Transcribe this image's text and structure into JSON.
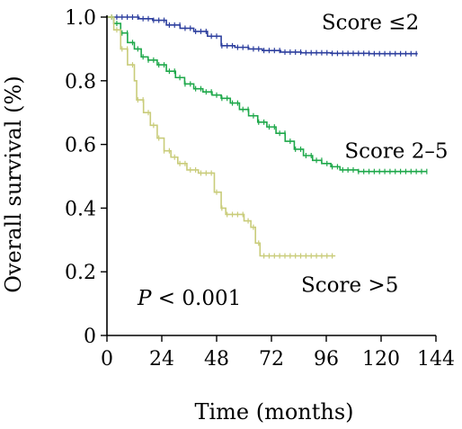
{
  "chart_data": {
    "type": "line",
    "subtype": "kaplan-meier step curves",
    "title": "",
    "xlabel": "Time (months)",
    "ylabel": "Overall survival (%)",
    "xlim": [
      0,
      144
    ],
    "ylim": [
      0,
      1.0
    ],
    "x_ticks": [
      "0",
      "24",
      "48",
      "72",
      "96",
      "120",
      "144"
    ],
    "y_ticks": [
      "0",
      "0.2",
      "0.4",
      "0.6",
      "0.8",
      "1.0"
    ],
    "grid": false,
    "annotations": {
      "p_value_italic": "P",
      "p_value_rest": " < 0.001"
    },
    "series": [
      {
        "name": "Score ≤2",
        "color": "#2d3f9e",
        "points": [
          [
            0,
            1.0
          ],
          [
            10,
            1.0
          ],
          [
            14,
            0.995
          ],
          [
            20,
            0.99
          ],
          [
            26,
            0.975
          ],
          [
            32,
            0.965
          ],
          [
            38,
            0.955
          ],
          [
            44,
            0.94
          ],
          [
            50,
            0.91
          ],
          [
            56,
            0.905
          ],
          [
            62,
            0.9
          ],
          [
            68,
            0.895
          ],
          [
            76,
            0.89
          ],
          [
            85,
            0.888
          ],
          [
            98,
            0.886
          ],
          [
            115,
            0.885
          ],
          [
            134,
            0.885
          ]
        ],
        "end_x": 136
      },
      {
        "name": "Score 2–5",
        "color": "#1ea84a",
        "points": [
          [
            0,
            1.0
          ],
          [
            3,
            0.98
          ],
          [
            6,
            0.95
          ],
          [
            9,
            0.92
          ],
          [
            12,
            0.9
          ],
          [
            15,
            0.875
          ],
          [
            18,
            0.865
          ],
          [
            22,
            0.85
          ],
          [
            26,
            0.83
          ],
          [
            30,
            0.81
          ],
          [
            34,
            0.79
          ],
          [
            38,
            0.775
          ],
          [
            42,
            0.765
          ],
          [
            46,
            0.755
          ],
          [
            50,
            0.745
          ],
          [
            54,
            0.73
          ],
          [
            58,
            0.71
          ],
          [
            62,
            0.69
          ],
          [
            66,
            0.67
          ],
          [
            70,
            0.655
          ],
          [
            74,
            0.635
          ],
          [
            78,
            0.61
          ],
          [
            82,
            0.585
          ],
          [
            86,
            0.565
          ],
          [
            90,
            0.55
          ],
          [
            94,
            0.54
          ],
          [
            98,
            0.53
          ],
          [
            102,
            0.52
          ],
          [
            110,
            0.515
          ],
          [
            125,
            0.515
          ],
          [
            138,
            0.515
          ]
        ],
        "end_x": 140
      },
      {
        "name": "Score >5",
        "color": "#c9cc7a",
        "points": [
          [
            0,
            1.0
          ],
          [
            3,
            0.96
          ],
          [
            6,
            0.9
          ],
          [
            9,
            0.85
          ],
          [
            12,
            0.8
          ],
          [
            13,
            0.74
          ],
          [
            16,
            0.7
          ],
          [
            19,
            0.66
          ],
          [
            22,
            0.62
          ],
          [
            25,
            0.58
          ],
          [
            28,
            0.56
          ],
          [
            31,
            0.54
          ],
          [
            35,
            0.52
          ],
          [
            40,
            0.51
          ],
          [
            44,
            0.51
          ],
          [
            47,
            0.45
          ],
          [
            50,
            0.4
          ],
          [
            52,
            0.38
          ],
          [
            60,
            0.36
          ],
          [
            63,
            0.34
          ],
          [
            65,
            0.29
          ],
          [
            67,
            0.25
          ],
          [
            80,
            0.25
          ],
          [
            99,
            0.25
          ]
        ],
        "end_x": 100
      }
    ],
    "labels": [
      {
        "text": "Score ≤2",
        "at_x": 94,
        "at_y": 0.985
      },
      {
        "text": "Score 2–5",
        "at_x": 104,
        "at_y": 0.58
      },
      {
        "text": "Score >5",
        "at_x": 85,
        "at_y": 0.16
      }
    ]
  }
}
